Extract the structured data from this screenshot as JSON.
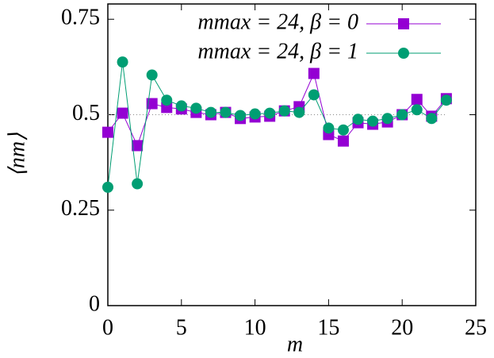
{
  "chart_data": {
    "type": "line",
    "x_label": "m",
    "y_label": "⟨nm⟩",
    "x": [
      0,
      1,
      2,
      3,
      4,
      5,
      6,
      7,
      8,
      9,
      10,
      11,
      12,
      13,
      14,
      15,
      16,
      17,
      18,
      19,
      20,
      21,
      22,
      23
    ],
    "series": [
      {
        "name": "mmax = 24, β = 0",
        "color": "#9400d3",
        "marker": "square",
        "values": [
          0.454,
          0.504,
          0.419,
          0.529,
          0.519,
          0.515,
          0.506,
          0.5,
          0.506,
          0.49,
          0.494,
          0.496,
          0.51,
          0.521,
          0.608,
          0.448,
          0.431,
          0.479,
          0.475,
          0.481,
          0.5,
          0.54,
          0.496,
          0.542
        ]
      },
      {
        "name": "mmax = 24, β = 1",
        "color": "#009e73",
        "marker": "circle",
        "values": [
          0.31,
          0.638,
          0.319,
          0.604,
          0.538,
          0.523,
          0.517,
          0.506,
          0.506,
          0.498,
          0.502,
          0.504,
          0.51,
          0.506,
          0.552,
          0.465,
          0.46,
          0.488,
          0.483,
          0.49,
          0.5,
          0.513,
          0.49,
          0.538
        ]
      }
    ],
    "reference_line": 0.5,
    "xlim": [
      0,
      25
    ],
    "xticks": [
      0,
      5,
      10,
      15,
      20,
      25
    ],
    "ylim": [
      0,
      0.79
    ],
    "yticks": [
      0,
      0.25,
      0.5,
      0.75
    ],
    "legend": "top-right"
  }
}
